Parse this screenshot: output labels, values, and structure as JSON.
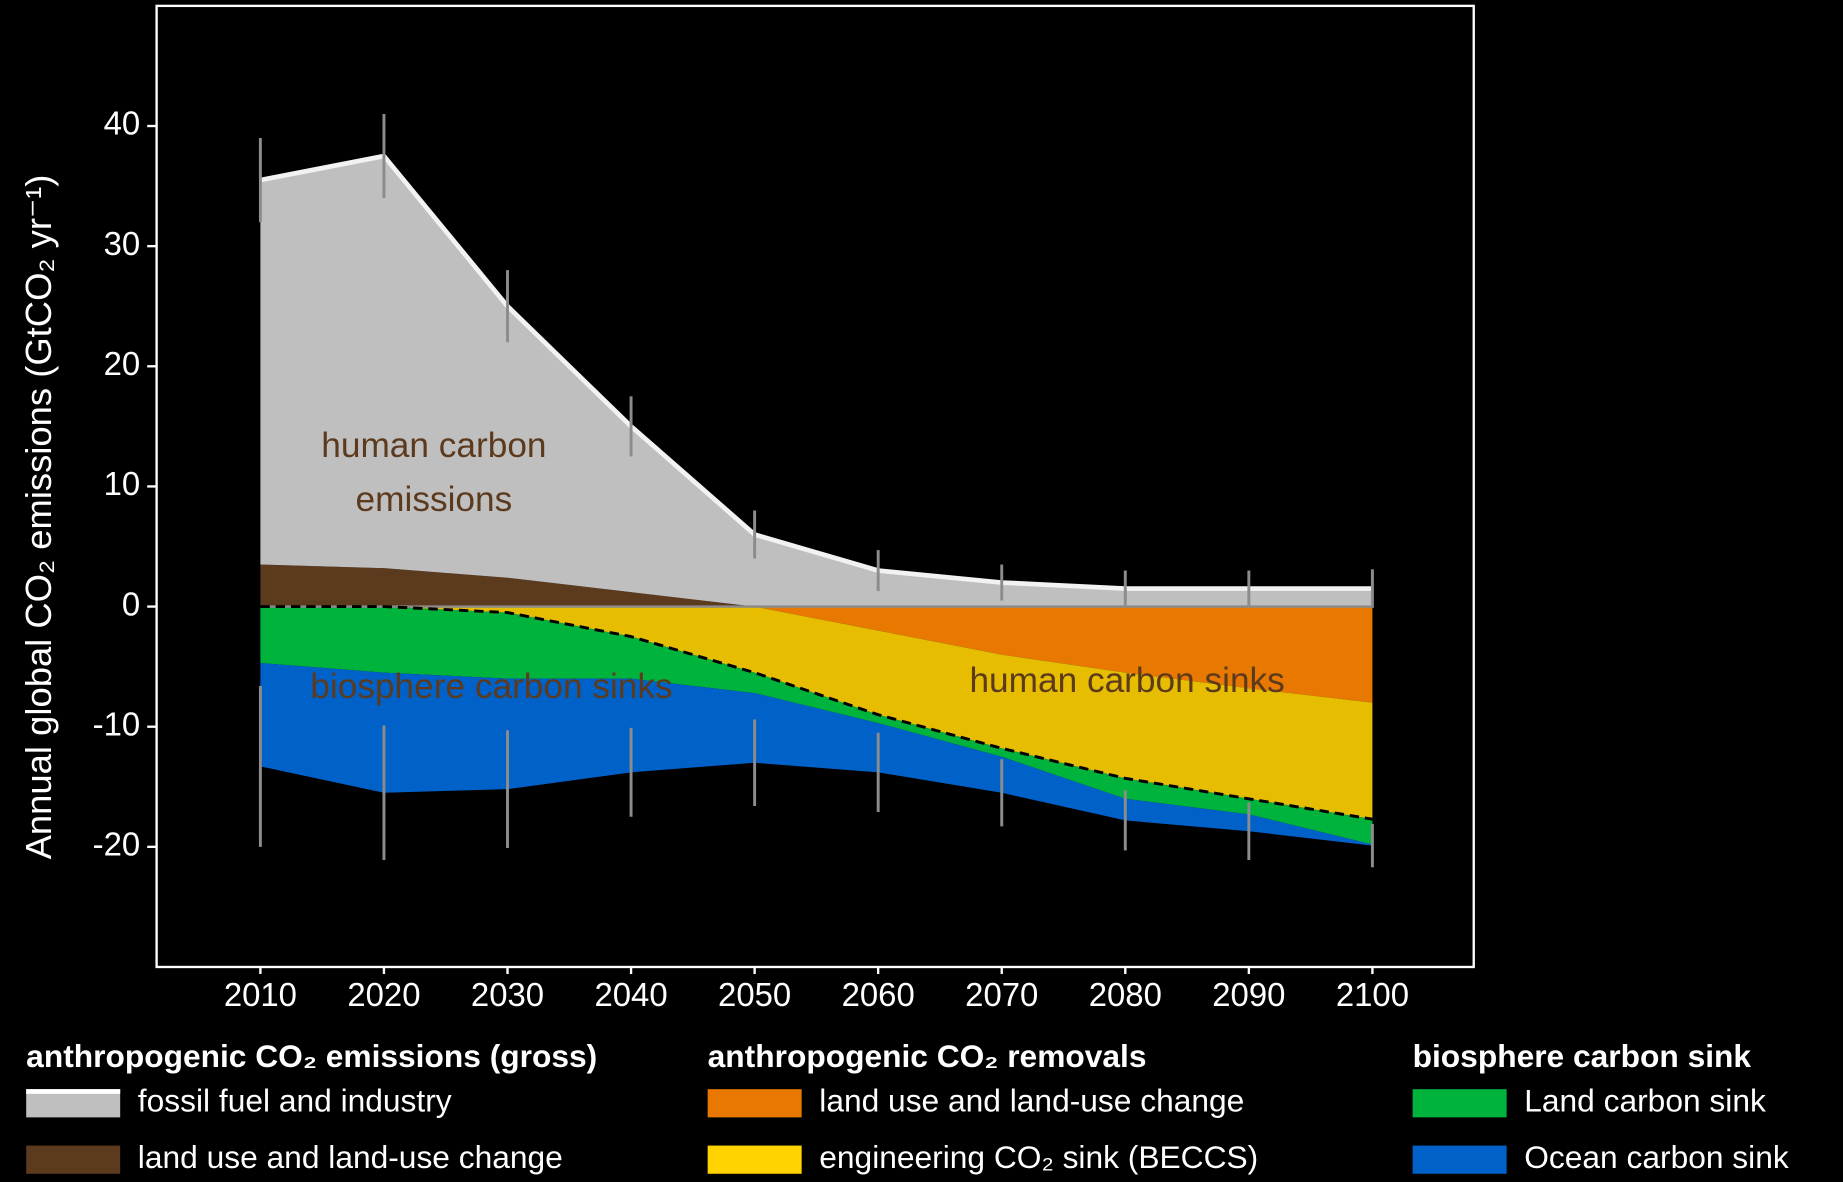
{
  "chart_data": {
    "type": "stacked-area",
    "ylabel": "Annual global CO₂ emissions (GtCO₂ yr⁻¹)",
    "x": [
      2010,
      2020,
      2030,
      2040,
      2050,
      2060,
      2070,
      2080,
      2090,
      2100
    ],
    "xlim": [
      2001.6,
      2108.2
    ],
    "xticks": [
      2010,
      2020,
      2030,
      2040,
      2050,
      2060,
      2070,
      2080,
      2090,
      2100
    ],
    "ylim": [
      -30,
      50
    ],
    "yticks": [
      -20,
      -10,
      0,
      10,
      20,
      30,
      40
    ],
    "series": [
      {
        "name": "land use and land-use change",
        "color": "#5c3a1e",
        "values": [
          3.5,
          3.2,
          2.4,
          1.2,
          0,
          0,
          0,
          0,
          0,
          0
        ]
      },
      {
        "name": "fossil fuel and industry",
        "color": "#bfbfbf",
        "values": [
          32,
          34.3,
          22.6,
          13.8,
          6,
          3,
          2,
          1.5,
          1.5,
          1.5
        ]
      },
      {
        "name": "land use and land-use change",
        "color": "#e87800",
        "values": [
          0,
          0,
          0,
          0,
          0,
          -2,
          -4,
          -5.5,
          -6.8,
          -8
        ]
      },
      {
        "name": "engineering CO₂ sink (BECCS)",
        "color": "#e6bd00",
        "values": [
          0,
          0,
          -0.5,
          -2.5,
          -5.5,
          -7,
          -7.8,
          -8.8,
          -9.2,
          -9.7
        ]
      },
      {
        "name": "Land carbon sink",
        "color": "#00b33c",
        "values": [
          -4.7,
          -5.5,
          -5.5,
          -3.5,
          -1.7,
          -0.7,
          -0.7,
          -1.7,
          -1.3,
          -2.1
        ]
      },
      {
        "name": "Ocean carbon sink",
        "color": "#0062c8",
        "values": [
          -8.6,
          -10,
          -9.2,
          -7.8,
          -5.8,
          -4.1,
          -3,
          -1.8,
          -1.4,
          -0.1
        ]
      }
    ],
    "upper_errors": [
      3.5,
      3.5,
      3,
      2.5,
      2,
      1.7,
      1.5,
      1.5,
      1.5,
      1.6
    ],
    "lower_errors": [
      6.7,
      5.6,
      4.9,
      3.7,
      3.6,
      3.3,
      2.8,
      2.5,
      2.4,
      1.8
    ],
    "legend_groups": [
      "anthropogenic CO₂ emissions (gross)",
      "anthropogenic CO₂ removals",
      "biosphere carbon sink"
    ],
    "annotations": [
      {
        "lines": [
          "human carbon",
          "emissions"
        ]
      },
      {
        "lines": [
          "biosphere carbon sinks"
        ]
      },
      {
        "lines": [
          "human carbon sinks"
        ]
      }
    ]
  }
}
